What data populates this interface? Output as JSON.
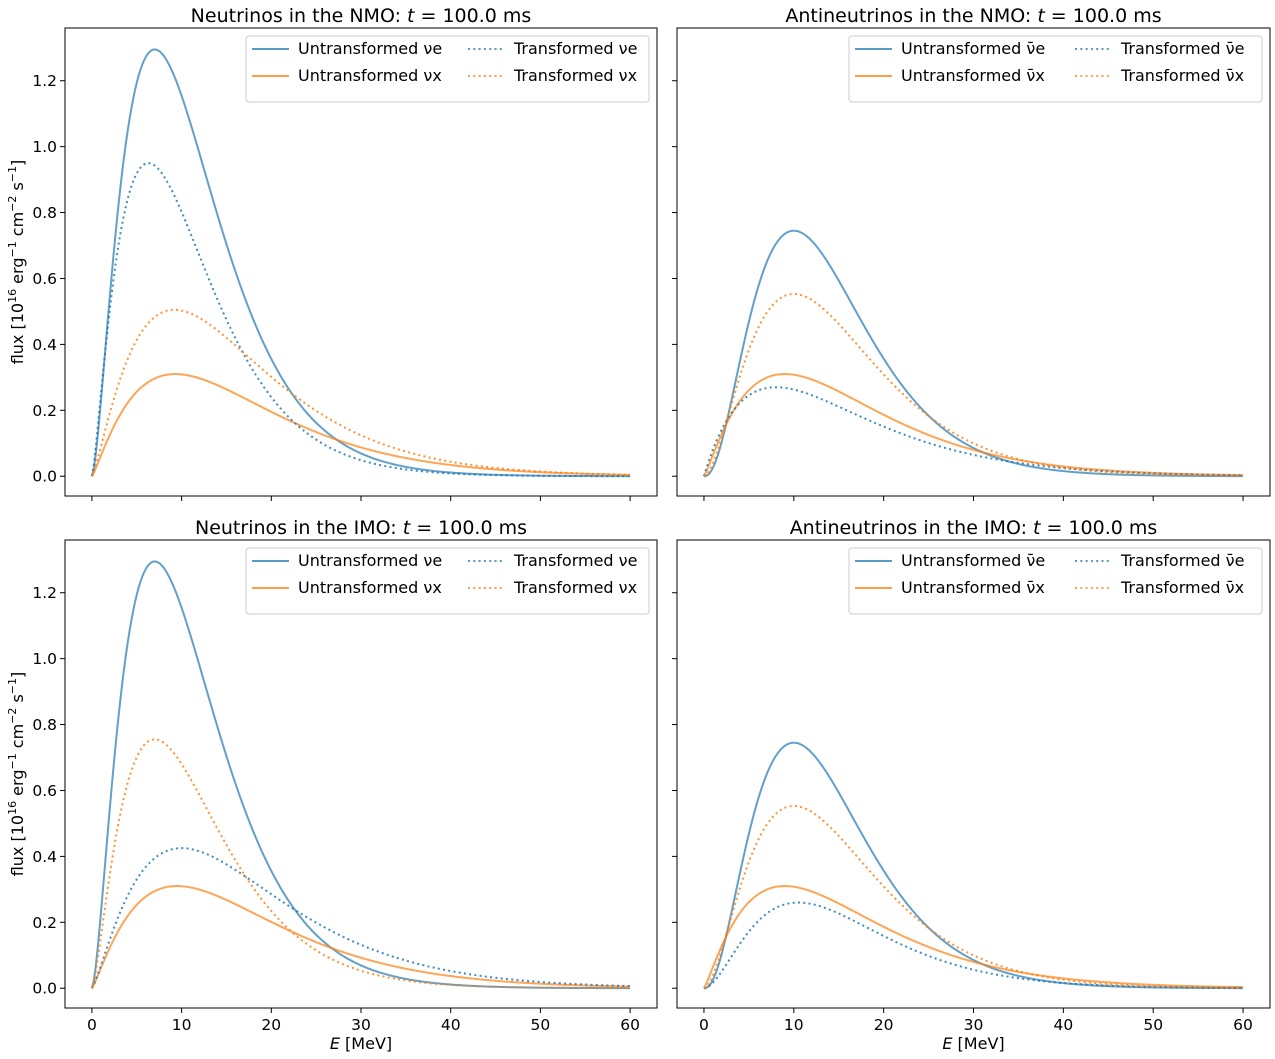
{
  "figure": {
    "ylabel": "flux [10^16 erg^-1 cm^-2 s^-1]",
    "xlabel": "E [MeV]"
  },
  "chart_data": [
    {
      "type": "line",
      "title": "Neutrinos in the NMO: t = 100.0 ms",
      "title_text": "Neutrinos in the NMO:",
      "time_label": "100.0 ms",
      "xlim": [
        -3,
        63
      ],
      "ylim": [
        -0.06,
        1.36
      ],
      "xticks": [
        0,
        10,
        20,
        30,
        40,
        50,
        60
      ],
      "yticks": [
        0.0,
        0.2,
        0.4,
        0.6,
        0.8,
        1.0,
        1.2
      ],
      "ylabel": "flux [10^16 erg^-1 cm^-2 s^-1]",
      "xlabel": "",
      "legend": "top-right",
      "series": [
        {
          "name": "Untransformed νe",
          "style": "solid",
          "color": "#1f77b4",
          "peak_E": 7.0,
          "peak_flux": 1.295,
          "shape": 1.6
        },
        {
          "name": "Untransformed νx",
          "style": "solid",
          "color": "#ff7f0e",
          "peak_E": 9.3,
          "peak_flux": 0.31,
          "shape": 1.2
        },
        {
          "name": "Transformed νe",
          "style": "dotted",
          "color": "#1f77b4",
          "peak_E": 6.3,
          "peak_flux": 0.95,
          "shape": 1.35
        },
        {
          "name": "Transformed νx",
          "style": "dotted",
          "color": "#ff7f0e",
          "peak_E": 9.2,
          "peak_flux": 0.505,
          "shape": 1.3
        }
      ]
    },
    {
      "type": "line",
      "title": "Antineutrinos in the NMO: t = 100.0 ms",
      "title_text": "Antineutrinos in the NMO:",
      "time_label": "100.0 ms",
      "xlim": [
        -3,
        63
      ],
      "ylim": [
        -0.06,
        1.36
      ],
      "xticks": [
        0,
        10,
        20,
        30,
        40,
        50,
        60
      ],
      "yticks": [
        0.0,
        0.2,
        0.4,
        0.6,
        0.8,
        1.0,
        1.2
      ],
      "ylabel": "",
      "xlabel": "",
      "legend": "top-right",
      "series": [
        {
          "name": "Untransformed ν̄e",
          "style": "solid",
          "color": "#1f77b4",
          "peak_E": 10.0,
          "peak_flux": 0.745,
          "shape": 2.4
        },
        {
          "name": "Untransformed ν̄x",
          "style": "solid",
          "color": "#ff7f0e",
          "peak_E": 9.0,
          "peak_flux": 0.31,
          "shape": 1.2
        },
        {
          "name": "Transformed ν̄e",
          "style": "dotted",
          "color": "#1f77b4",
          "peak_E": 8.0,
          "peak_flux": 0.27,
          "shape": 1.0
        },
        {
          "name": "Transformed ν̄x",
          "style": "dotted",
          "color": "#ff7f0e",
          "peak_E": 10.0,
          "peak_flux": 0.553,
          "shape": 1.9
        }
      ]
    },
    {
      "type": "line",
      "title": "Neutrinos in the IMO: t = 100.0 ms",
      "title_text": "Neutrinos in the IMO:",
      "time_label": "100.0 ms",
      "xlim": [
        -3,
        63
      ],
      "ylim": [
        -0.06,
        1.36
      ],
      "xticks": [
        0,
        10,
        20,
        30,
        40,
        50,
        60
      ],
      "yticks": [
        0.0,
        0.2,
        0.4,
        0.6,
        0.8,
        1.0,
        1.2
      ],
      "ylabel": "flux [10^16 erg^-1 cm^-2 s^-1]",
      "xlabel": "E [MeV]",
      "legend": "top-right",
      "series": [
        {
          "name": "Untransformed νe",
          "style": "solid",
          "color": "#1f77b4",
          "peak_E": 7.0,
          "peak_flux": 1.295,
          "shape": 1.6
        },
        {
          "name": "Untransformed νx",
          "style": "solid",
          "color": "#ff7f0e",
          "peak_E": 9.5,
          "peak_flux": 0.31,
          "shape": 1.2
        },
        {
          "name": "Transformed νe",
          "style": "dotted",
          "color": "#1f77b4",
          "peak_E": 10.0,
          "peak_flux": 0.425,
          "shape": 1.3
        },
        {
          "name": "Transformed νx",
          "style": "dotted",
          "color": "#ff7f0e",
          "peak_E": 7.0,
          "peak_flux": 0.755,
          "shape": 1.45
        }
      ]
    },
    {
      "type": "line",
      "title": "Antineutrinos in the IMO: t = 100.0 ms",
      "title_text": "Antineutrinos in the IMO:",
      "time_label": "100.0 ms",
      "xlim": [
        -3,
        63
      ],
      "ylim": [
        -0.06,
        1.36
      ],
      "xticks": [
        0,
        10,
        20,
        30,
        40,
        50,
        60
      ],
      "yticks": [
        0.0,
        0.2,
        0.4,
        0.6,
        0.8,
        1.0,
        1.2
      ],
      "ylabel": "",
      "xlabel": "E [MeV]",
      "legend": "top-right",
      "series": [
        {
          "name": "Untransformed ν̄e",
          "style": "solid",
          "color": "#1f77b4",
          "peak_E": 10.0,
          "peak_flux": 0.745,
          "shape": 2.4
        },
        {
          "name": "Untransformed ν̄x",
          "style": "solid",
          "color": "#ff7f0e",
          "peak_E": 9.0,
          "peak_flux": 0.31,
          "shape": 1.2
        },
        {
          "name": "Transformed ν̄e",
          "style": "dotted",
          "color": "#1f77b4",
          "peak_E": 10.5,
          "peak_flux": 0.26,
          "shape": 1.9
        },
        {
          "name": "Transformed ν̄x",
          "style": "dotted",
          "color": "#ff7f0e",
          "peak_E": 10.0,
          "peak_flux": 0.553,
          "shape": 1.9
        }
      ]
    }
  ]
}
